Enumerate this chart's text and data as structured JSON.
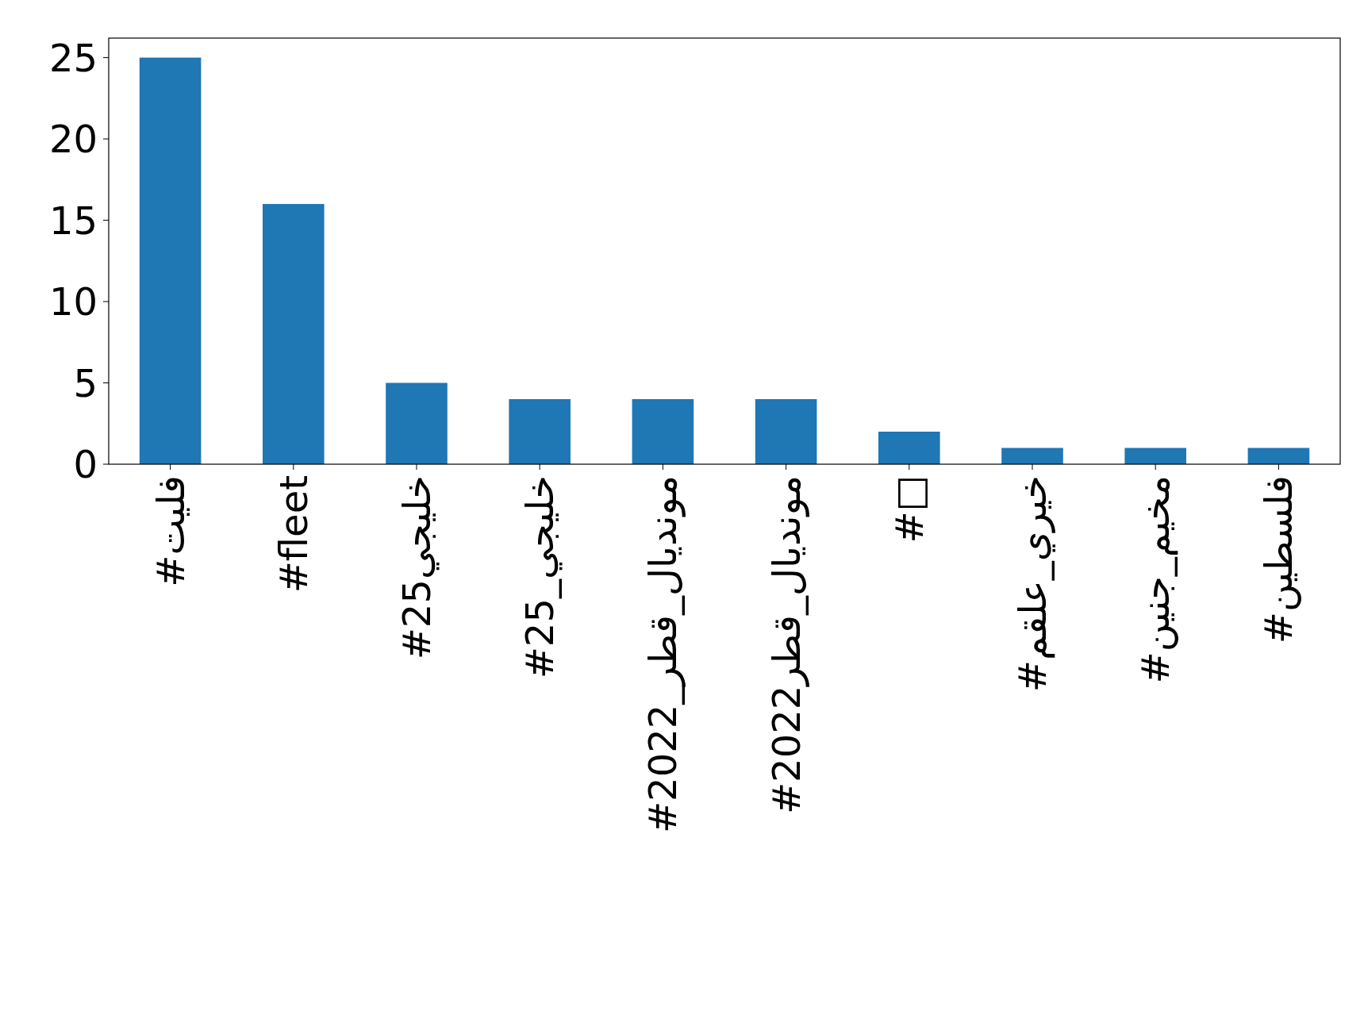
{
  "chart_data": {
    "type": "bar",
    "categories": [
      "#فليت",
      "#fleet",
      "#خليجي25",
      "#خليجي_25",
      "#مونديال_قطر_2022",
      "#مونديال_قطر2022",
      "#□",
      "#خيري_علقم",
      "#مخيم_جنين",
      "#فلسطين"
    ],
    "values": [
      25,
      16,
      5,
      4,
      4,
      4,
      2,
      1,
      1,
      1
    ],
    "color": "#1f77b4",
    "ylim": [
      0,
      26.2
    ],
    "yticks": [
      0,
      5,
      10,
      15,
      20,
      25
    ],
    "grid": false
  }
}
